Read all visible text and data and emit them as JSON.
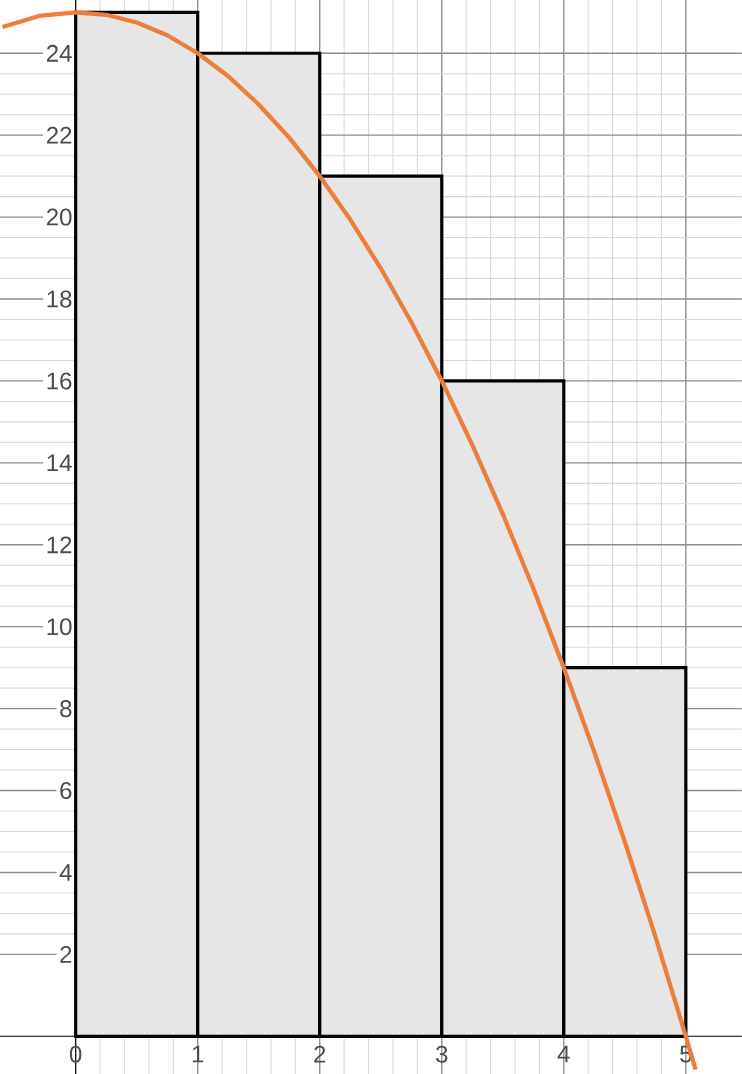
{
  "chart_data": {
    "type": "bar",
    "xlim": [
      -0.62,
      5.46
    ],
    "ylim": [
      -0.92,
      25.3
    ],
    "xticks": [
      0,
      1,
      2,
      3,
      4,
      5
    ],
    "yticks": [
      2,
      4,
      6,
      8,
      10,
      12,
      14,
      16,
      18,
      20,
      22,
      24
    ],
    "grid": true,
    "series": [
      {
        "color": "#e6e6e6",
        "x": [
          0.5,
          1.5,
          2.5,
          3.5,
          4.5
        ],
        "values": [
          25,
          24,
          21,
          16,
          9
        ]
      },
      {
        "type": "line",
        "color": "#ed7d3a",
        "x": [
          -0.6,
          -0.3,
          0,
          0.25,
          0.5,
          0.75,
          1,
          1.25,
          1.5,
          1.75,
          2,
          2.25,
          2.5,
          2.75,
          3,
          3.25,
          3.5,
          3.75,
          4,
          4.25,
          4.5,
          4.75,
          5,
          5.08
        ],
        "values": [
          24.64,
          24.91,
          25,
          24.94,
          24.75,
          24.44,
          24,
          23.44,
          22.75,
          21.94,
          21,
          19.94,
          18.75,
          17.44,
          16,
          14.44,
          12.75,
          10.94,
          9,
          6.94,
          4.75,
          2.44,
          0,
          -0.81
        ]
      }
    ]
  }
}
